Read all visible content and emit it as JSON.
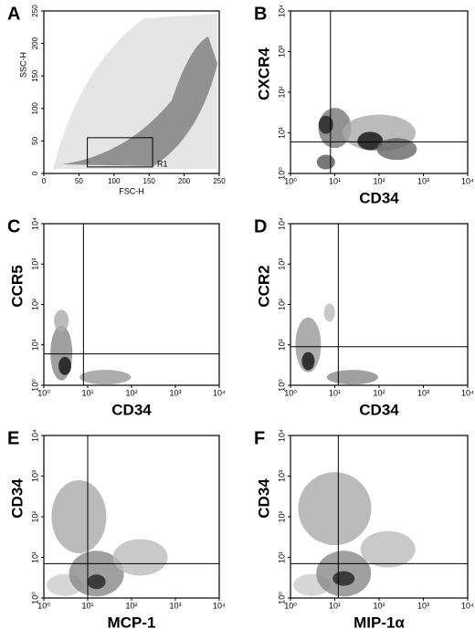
{
  "chart_data": [
    {
      "type": "scatter",
      "panel": "A",
      "xlabel": "FSC-H",
      "ylabel": "SSC-H",
      "xscale": "linear",
      "yscale": "linear",
      "xlim": [
        0,
        250
      ],
      "ylim": [
        0,
        250
      ],
      "xticks": [
        0,
        50,
        100,
        150,
        200,
        250
      ],
      "yticks": [
        0,
        50,
        100,
        150,
        200,
        250
      ],
      "gate": {
        "label": "R1",
        "x": [
          62,
          155
        ],
        "y": [
          10,
          55
        ]
      }
    },
    {
      "type": "contour",
      "panel": "B",
      "xlabel": "CD34",
      "ylabel": "CXCR4",
      "xscale": "log",
      "yscale": "log",
      "xlim": [
        1,
        10000
      ],
      "ylim": [
        1,
        10000
      ],
      "xticks": [
        {
          "value": 1,
          "label": "10⁰"
        },
        {
          "value": 10,
          "label": "10¹"
        },
        {
          "value": 100,
          "label": "10²"
        },
        {
          "value": 1000,
          "label": "10³"
        },
        {
          "value": 10000,
          "label": "10⁴"
        }
      ],
      "yticks": [
        {
          "value": 1,
          "label": "10⁰"
        },
        {
          "value": 10,
          "label": "10¹"
        },
        {
          "value": 100,
          "label": "10²"
        },
        {
          "value": 1000,
          "label": "10³"
        },
        {
          "value": 10000,
          "label": "10⁴"
        }
      ],
      "quadrant": {
        "x": 8,
        "y": 6
      }
    },
    {
      "type": "contour",
      "panel": "C",
      "xlabel": "CD34",
      "ylabel": "CCR5",
      "xscale": "log",
      "yscale": "log",
      "xlim": [
        1,
        10000
      ],
      "ylim": [
        1,
        10000
      ],
      "xticks": [
        {
          "value": 1,
          "label": "10⁰"
        },
        {
          "value": 10,
          "label": "10¹"
        },
        {
          "value": 100,
          "label": "10²"
        },
        {
          "value": 1000,
          "label": "10³"
        },
        {
          "value": 10000,
          "label": "10⁴"
        }
      ],
      "yticks": [
        {
          "value": 1,
          "label": "10⁰"
        },
        {
          "value": 10,
          "label": "10¹"
        },
        {
          "value": 100,
          "label": "10²"
        },
        {
          "value": 1000,
          "label": "10³"
        },
        {
          "value": 10000,
          "label": "10⁴"
        }
      ],
      "quadrant": {
        "x": 8,
        "y": 6
      }
    },
    {
      "type": "contour",
      "panel": "D",
      "xlabel": "CD34",
      "ylabel": "CCR2",
      "xscale": "log",
      "yscale": "log",
      "xlim": [
        1,
        10000
      ],
      "ylim": [
        1,
        10000
      ],
      "xticks": [
        {
          "value": 1,
          "label": "10⁰"
        },
        {
          "value": 10,
          "label": "10¹"
        },
        {
          "value": 100,
          "label": "10²"
        },
        {
          "value": 1000,
          "label": "10³"
        },
        {
          "value": 10000,
          "label": "10⁴"
        }
      ],
      "yticks": [
        {
          "value": 1,
          "label": "10⁰"
        },
        {
          "value": 10,
          "label": "10¹"
        },
        {
          "value": 100,
          "label": "10²"
        },
        {
          "value": 1000,
          "label": "10³"
        },
        {
          "value": 10000,
          "label": "10⁴"
        }
      ],
      "quadrant": {
        "x": 12,
        "y": 9
      }
    },
    {
      "type": "contour",
      "panel": "E",
      "xlabel": "MCP-1",
      "ylabel": "CD34",
      "xscale": "log",
      "yscale": "log",
      "xlim": [
        1,
        10000
      ],
      "ylim": [
        1,
        10000
      ],
      "xticks": [
        {
          "value": 1,
          "label": "10⁰"
        },
        {
          "value": 10,
          "label": "10¹"
        },
        {
          "value": 100,
          "label": "10²"
        },
        {
          "value": 1000,
          "label": "10³"
        },
        {
          "value": 10000,
          "label": "10⁴"
        }
      ],
      "yticks": [
        {
          "value": 1,
          "label": "10⁰"
        },
        {
          "value": 10,
          "label": "10¹"
        },
        {
          "value": 100,
          "label": "10²"
        },
        {
          "value": 1000,
          "label": "10³"
        },
        {
          "value": 10000,
          "label": "10⁴"
        }
      ],
      "quadrant": {
        "x": 10,
        "y": 7
      }
    },
    {
      "type": "contour",
      "panel": "F",
      "xlabel": "MIP-1α",
      "ylabel": "CD34",
      "xscale": "log",
      "yscale": "log",
      "xlim": [
        1,
        10000
      ],
      "ylim": [
        1,
        10000
      ],
      "xticks": [
        {
          "value": 1,
          "label": "10⁰"
        },
        {
          "value": 10,
          "label": "10¹"
        },
        {
          "value": 100,
          "label": "10²"
        },
        {
          "value": 1000,
          "label": "10³"
        },
        {
          "value": 10000,
          "label": "10⁴"
        }
      ],
      "yticks": [
        {
          "value": 1,
          "label": "10⁰"
        },
        {
          "value": 10,
          "label": "10¹"
        },
        {
          "value": 100,
          "label": "10²"
        },
        {
          "value": 1000,
          "label": "10³"
        },
        {
          "value": 10000,
          "label": "10⁴"
        }
      ],
      "quadrant": {
        "x": 12,
        "y": 7
      }
    }
  ]
}
